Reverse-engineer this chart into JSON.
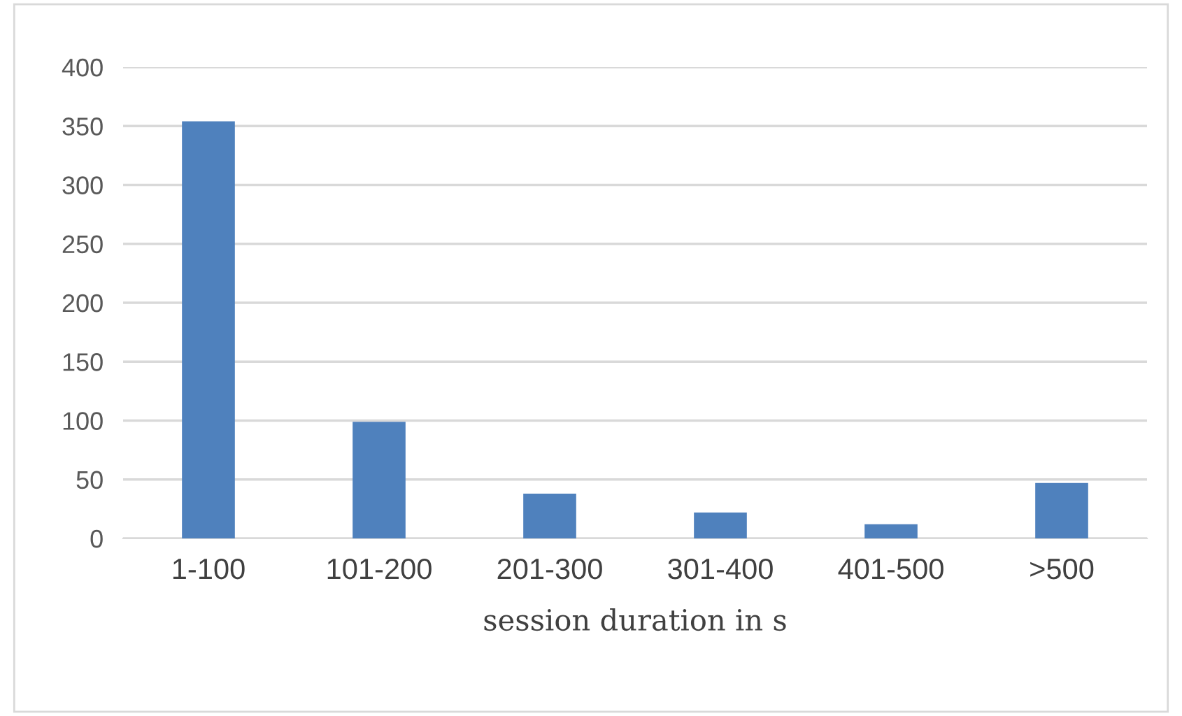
{
  "chart_data": {
    "type": "bar",
    "xlabel": "session duration in s",
    "categories": [
      "1-100",
      "101-200",
      "201-300",
      "301-400",
      "401-500",
      ">500"
    ],
    "values": [
      354,
      99,
      38,
      22,
      12,
      47
    ],
    "color": "#4f81bd",
    "ylim": [
      0,
      400
    ],
    "yticks": [
      0,
      50,
      100,
      150,
      200,
      250,
      300,
      350,
      400
    ],
    "grid": "y"
  }
}
